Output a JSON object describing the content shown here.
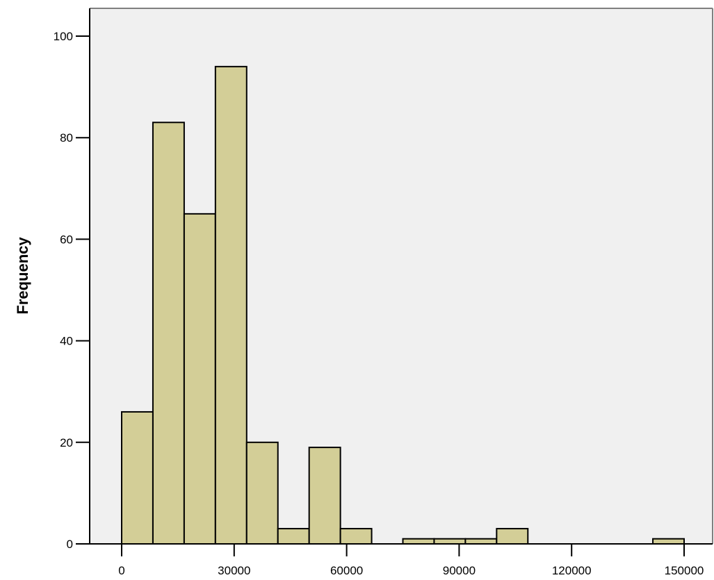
{
  "chart_data": {
    "type": "bar",
    "subtype": "histogram",
    "title": "",
    "xlabel": "",
    "ylabel": "Frequency",
    "xlim": [
      0,
      150000
    ],
    "ylim": [
      0,
      100
    ],
    "x_ticks": [
      0,
      30000,
      60000,
      90000,
      120000,
      150000
    ],
    "x_tick_labels": [
      "0",
      "30000",
      "60000",
      "90000",
      "120000",
      "150000"
    ],
    "y_ticks": [
      0,
      20,
      40,
      60,
      80,
      100
    ],
    "y_tick_labels": [
      "0",
      "20",
      "40",
      "60",
      "80",
      "100"
    ],
    "bin_width": 8333.33,
    "bins": [
      {
        "x0": 0,
        "x1": 8333.33,
        "value": 26
      },
      {
        "x0": 8333.33,
        "x1": 16666.67,
        "value": 83
      },
      {
        "x0": 16666.67,
        "x1": 25000,
        "value": 65
      },
      {
        "x0": 25000,
        "x1": 33333.33,
        "value": 94
      },
      {
        "x0": 33333.33,
        "x1": 41666.67,
        "value": 20
      },
      {
        "x0": 41666.67,
        "x1": 50000,
        "value": 3
      },
      {
        "x0": 50000,
        "x1": 58333.33,
        "value": 19
      },
      {
        "x0": 58333.33,
        "x1": 66666.67,
        "value": 3
      },
      {
        "x0": 66666.67,
        "x1": 75000,
        "value": 0
      },
      {
        "x0": 75000,
        "x1": 83333.33,
        "value": 1
      },
      {
        "x0": 83333.33,
        "x1": 91666.67,
        "value": 1
      },
      {
        "x0": 91666.67,
        "x1": 100000,
        "value": 1
      },
      {
        "x0": 100000,
        "x1": 108333.33,
        "value": 3
      },
      {
        "x0": 108333.33,
        "x1": 116666.67,
        "value": 0
      },
      {
        "x0": 116666.67,
        "x1": 125000,
        "value": 0
      },
      {
        "x0": 125000,
        "x1": 133333.33,
        "value": 0
      },
      {
        "x0": 133333.33,
        "x1": 141666.67,
        "value": 0
      },
      {
        "x0": 141666.67,
        "x1": 150000,
        "value": 1
      }
    ],
    "grid": false,
    "colors": {
      "bar_fill": "#d3ce97",
      "bar_stroke": "#000000",
      "plot_background": "#f0f0f0",
      "frame": "#7f7f7f"
    }
  }
}
